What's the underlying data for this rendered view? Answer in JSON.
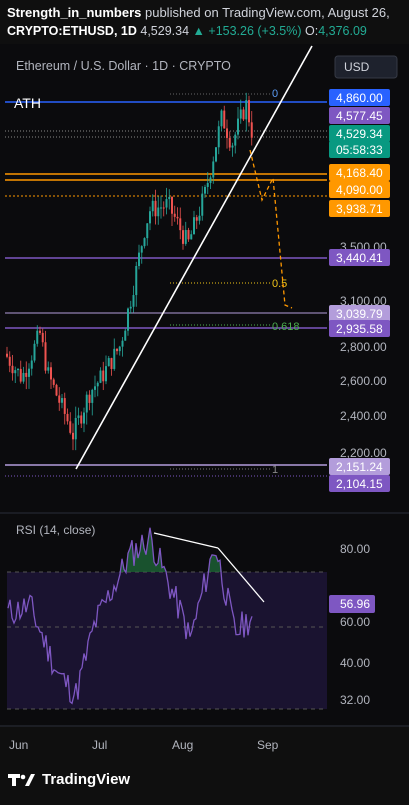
{
  "header": {
    "author": "Strength_in_numbers",
    "published_text": "published on TradingView.com, August 26,",
    "symbol": "CRYPTO:ETHUSD, 1D",
    "last_price": "4,529.34",
    "change": "+153.26 (+3.5%)",
    "open_label": "O:",
    "open_value": "4,376.09"
  },
  "pane_title": "Ethereum / U.S. Dollar · 1D · CRYPTO",
  "currency_button": "USD",
  "ath_label": "ATH",
  "fib_labels": {
    "f0": "0",
    "f05": "0.5",
    "f0618": "0.618",
    "f1": "1"
  },
  "price_axis_ticks": [
    "3,500.00",
    "3,100.00",
    "2,800.00",
    "2,600.00",
    "2,400.00",
    "2,200.00"
  ],
  "price_tags": [
    {
      "text": "4,860.00",
      "bg": "#2962ff"
    },
    {
      "text": "4,577.45",
      "bg": "#7e57c2"
    },
    {
      "text": "4,529.34",
      "bg": "#089981"
    },
    {
      "text": "05:58:33",
      "bg": "#089981"
    },
    {
      "text": "4,168.40",
      "bg": "#ff9800"
    },
    {
      "text": "4,090.00",
      "bg": "#ff9800"
    },
    {
      "text": "3,938.71",
      "bg": "#ff9800"
    },
    {
      "text": "3,440.41",
      "bg": "#7e57c2"
    },
    {
      "text": "3,039.79",
      "bg": "#b39ddb"
    },
    {
      "text": "2,935.58",
      "bg": "#7e57c2"
    },
    {
      "text": "2,151.24",
      "bg": "#b39ddb"
    },
    {
      "text": "2,104.15",
      "bg": "#7e57c2"
    }
  ],
  "rsi": {
    "title": "RSI (14, close)",
    "value_tag": "56.96",
    "axis_ticks": [
      "80.00",
      "60.00",
      "40.00",
      "32.00"
    ]
  },
  "time_axis": [
    "Jun",
    "Jul",
    "Aug",
    "Sep"
  ],
  "footer_brand": "TradingView",
  "colors": {
    "up": "#26a69a",
    "down": "#ef5350",
    "blue_line": "#2962ff",
    "orange_line": "#ff9800",
    "purple_line": "#7e57c2",
    "rsi_line": "#7e57c2"
  },
  "chart_data": [
    {
      "type": "candlestick",
      "title": "Ethereum / U.S. Dollar · 1D · CRYPTO",
      "x_range": [
        "Jun",
        "Sep"
      ],
      "ylim": [
        2100,
        4900
      ],
      "scale": "log",
      "close_path": [
        {
          "x": "May 27",
          "y": 2650
        },
        {
          "x": "Jun 2",
          "y": 2500
        },
        {
          "x": "Jun 10",
          "y": 2780
        },
        {
          "x": "Jun 14",
          "y": 2520
        },
        {
          "x": "Jun 21",
          "y": 2250
        },
        {
          "x": "Jun 22",
          "y": 2180
        },
        {
          "x": "Jun 26",
          "y": 2420
        },
        {
          "x": "Jul 1",
          "y": 2490
        },
        {
          "x": "Jul 9",
          "y": 2700
        },
        {
          "x": "Jul 13",
          "y": 3000
        },
        {
          "x": "Jul 18",
          "y": 3600
        },
        {
          "x": "Jul 21",
          "y": 3750
        },
        {
          "x": "Jul 27",
          "y": 3800
        },
        {
          "x": "Aug 2",
          "y": 3450
        },
        {
          "x": "Aug 8",
          "y": 3900
        },
        {
          "x": "Aug 13",
          "y": 4700
        },
        {
          "x": "Aug 17",
          "y": 4400
        },
        {
          "x": "Aug 22",
          "y": 4850
        },
        {
          "x": "Aug 26",
          "y": 4529.34
        }
      ],
      "horizontal_levels": [
        4860.0,
        4577.45,
        4168.4,
        4090.0,
        3938.71,
        3440.41,
        3039.79,
        2935.58,
        2151.24,
        2104.15
      ],
      "fibonacci": [
        {
          "level": "0",
          "price": 4860
        },
        {
          "level": "0.5",
          "price": 3440.41
        },
        {
          "level": "0.618",
          "price": 2935.58
        },
        {
          "level": "1",
          "price": 2104.15
        }
      ],
      "projection_path": [
        {
          "x": "Aug 26",
          "y": 4300
        },
        {
          "x": "Aug 28",
          "y": 3900
        },
        {
          "x": "Aug 29",
          "y": 4100
        },
        {
          "x": "Sep 3",
          "y": 3039.79
        }
      ]
    },
    {
      "type": "line",
      "title": "RSI (14, close)",
      "ylim": [
        30,
        90
      ],
      "bands": [
        70,
        50,
        30
      ],
      "values": [
        {
          "x": "Jun 1",
          "y": 58
        },
        {
          "x": "Jun 10",
          "y": 60
        },
        {
          "x": "Jun 20",
          "y": 40
        },
        {
          "x": "Jun 22",
          "y": 34
        },
        {
          "x": "Jul 1",
          "y": 55
        },
        {
          "x": "Jul 15",
          "y": 75
        },
        {
          "x": "Jul 20",
          "y": 80
        },
        {
          "x": "Aug 1",
          "y": 55
        },
        {
          "x": "Aug 5",
          "y": 50
        },
        {
          "x": "Aug 13",
          "y": 78
        },
        {
          "x": "Aug 20",
          "y": 52
        },
        {
          "x": "Aug 26",
          "y": 56.96
        }
      ]
    }
  ]
}
